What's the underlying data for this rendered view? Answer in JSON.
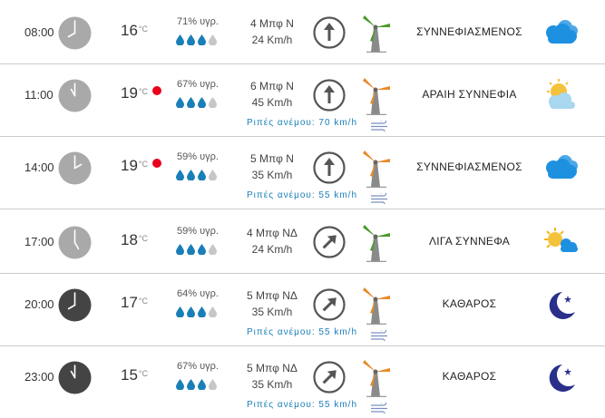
{
  "unit": "°C",
  "rows": [
    {
      "time": "08:00",
      "clock": "light",
      "temp": "16",
      "hot": false,
      "humidity": "71% υγρ.",
      "drops": 3,
      "wind_force": "4 Μπφ N",
      "wind_speed": "24 Km/h",
      "dir": "N",
      "mill": "green",
      "gust": "",
      "cond": "ΣΥΝΝΕΦΙΑΣΜΕΝΟΣ",
      "icon": "cloudy-icon"
    },
    {
      "time": "11:00",
      "clock": "light",
      "temp": "19",
      "hot": true,
      "humidity": "67% υγρ.",
      "drops": 3,
      "wind_force": "6 Μπφ N",
      "wind_speed": "45 Km/h",
      "dir": "N",
      "mill": "orange",
      "gust": "Ριπές ανέμου: 70 km/h",
      "cond": "ΑΡΑΙΗ ΣΥΝΝΕΦΙΑ",
      "icon": "partly-cloudy-icon"
    },
    {
      "time": "14:00",
      "clock": "light",
      "temp": "19",
      "hot": true,
      "humidity": "59% υγρ.",
      "drops": 3,
      "wind_force": "5 Μπφ N",
      "wind_speed": "35 Km/h",
      "dir": "N",
      "mill": "orange",
      "gust": "Ριπές ανέμου: 55 km/h",
      "cond": "ΣΥΝΝΕΦΙΑΣΜΕΝΟΣ",
      "icon": "cloudy-icon"
    },
    {
      "time": "17:00",
      "clock": "light",
      "temp": "18",
      "hot": false,
      "humidity": "59% υγρ.",
      "drops": 3,
      "wind_force": "4 Μπφ ΝΔ",
      "wind_speed": "24 Km/h",
      "dir": "SW",
      "mill": "green",
      "gust": "",
      "cond": "ΛΙΓΑ ΣΥΝΝΕΦΑ",
      "icon": "sun-cloud-icon"
    },
    {
      "time": "20:00",
      "clock": "dark",
      "temp": "17",
      "hot": false,
      "humidity": "64% υγρ.",
      "drops": 3,
      "wind_force": "5 Μπφ ΝΔ",
      "wind_speed": "35 Km/h",
      "dir": "SW",
      "mill": "orange",
      "gust": "Ριπές ανέμου: 55 km/h",
      "cond": "ΚΑΘΑΡΟΣ",
      "icon": "moon-icon"
    },
    {
      "time": "23:00",
      "clock": "dark",
      "temp": "15",
      "hot": false,
      "humidity": "67% υγρ.",
      "drops": 3,
      "wind_force": "5 Μπφ ΝΔ",
      "wind_speed": "35 Km/h",
      "dir": "SW",
      "mill": "orange",
      "gust": "Ριπές ανέμου: 55 km/h",
      "cond": "ΚΑΘΑΡΟΣ",
      "icon": "moon-icon"
    }
  ],
  "colors": {
    "accent": "#1a7fb8",
    "hot": "#e8001c",
    "cloud": "#1e90e0",
    "green_blade": "#4a9a2a",
    "orange_blade": "#e98a2a"
  }
}
